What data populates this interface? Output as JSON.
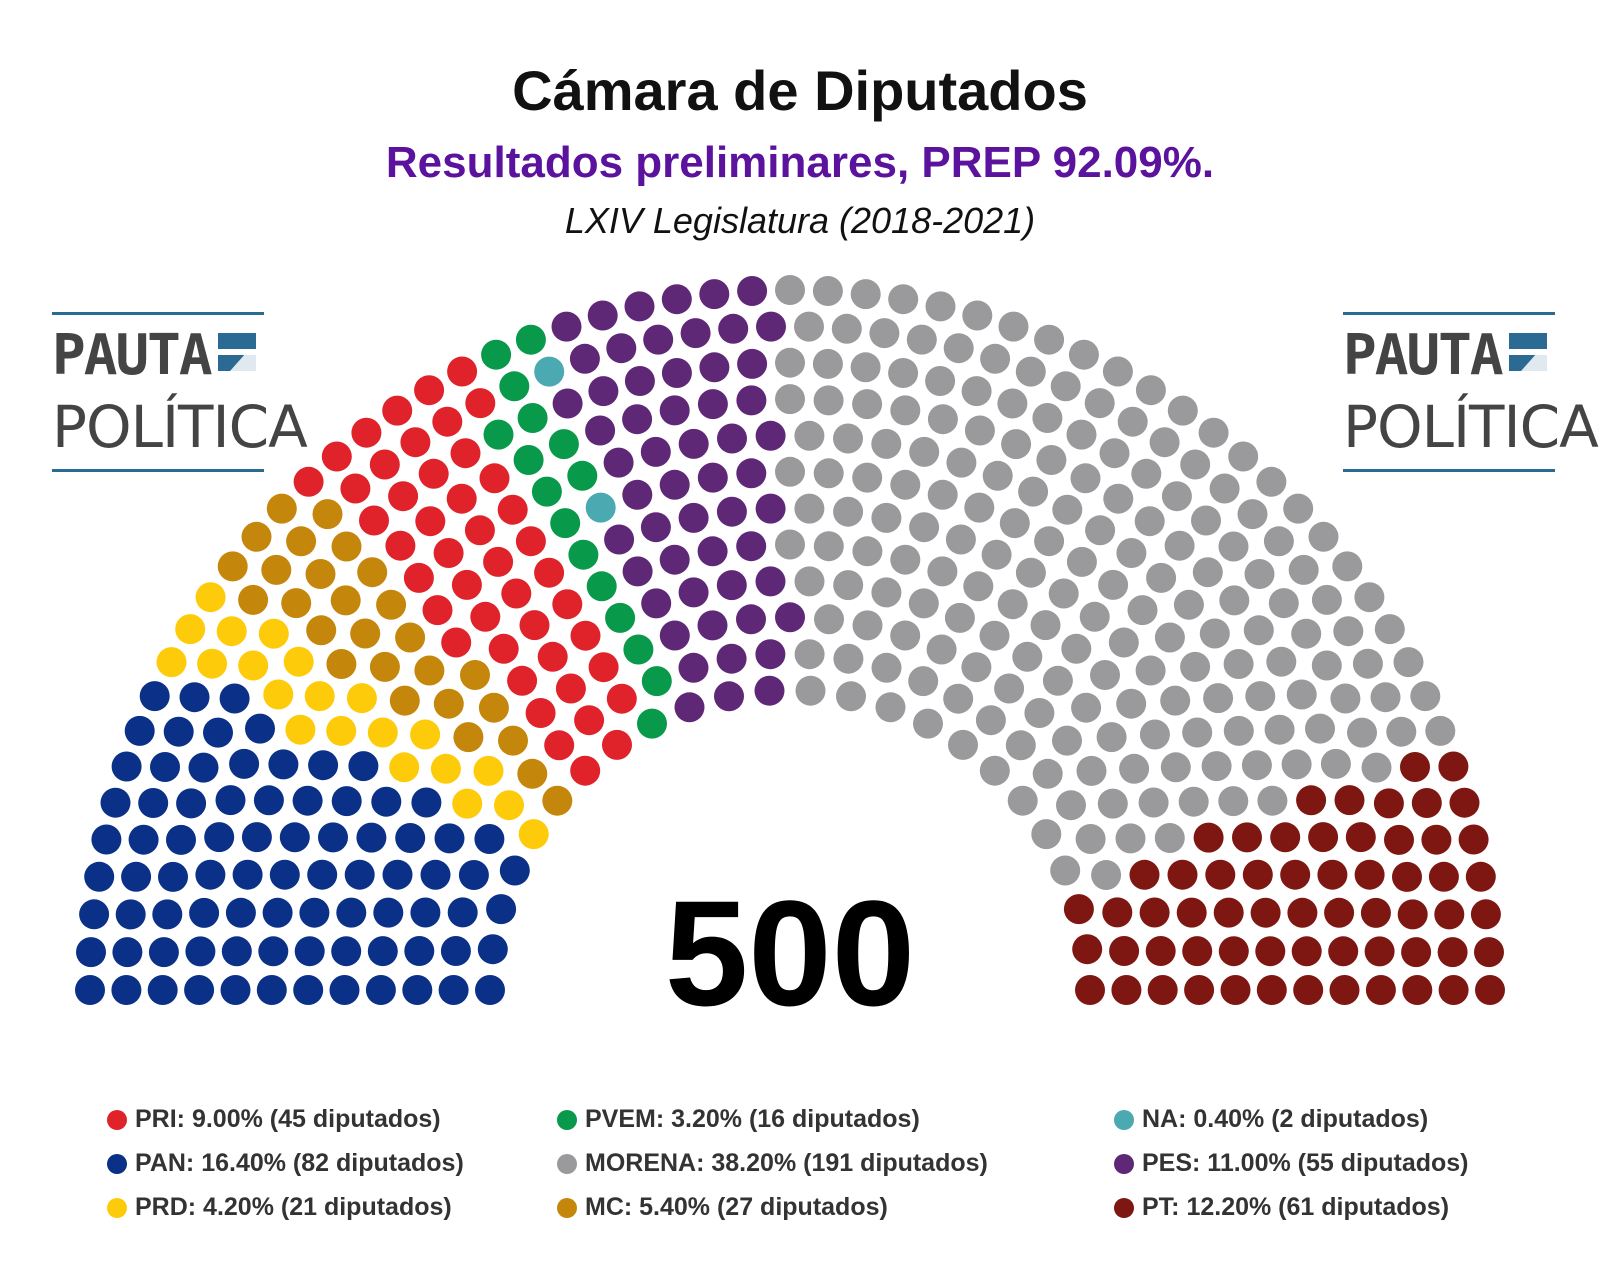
{
  "header": {
    "title": "Cámara de Diputados",
    "subtitle": "Resultados preliminares, PREP 92.09%.",
    "caption": "LXIV Legislatura (2018-2021)"
  },
  "logo": {
    "line1": "PAUTA",
    "line2": "POLÍTICA",
    "color": "#2b6a93"
  },
  "colors": {
    "subtitle": "#5b129d",
    "seat_total": "#000000",
    "logo_text": "#444444"
  },
  "chart_data": {
    "type": "parliament",
    "title": "Cámara de Diputados",
    "total_seats": 500,
    "center_label": "500",
    "order_left_to_right": [
      "PAN",
      "PRD",
      "MC",
      "PRI",
      "PVEM",
      "NA",
      "PES",
      "MORENA",
      "PT"
    ],
    "parties": [
      {
        "name": "PRI",
        "pct": 9.0,
        "seats": 45,
        "color": "#e0232b",
        "label": "PRI: 9.00% (45 diputados)"
      },
      {
        "name": "PAN",
        "pct": 16.4,
        "seats": 82,
        "color": "#0a3187",
        "label": "PAN: 16.40% (82 diputados)"
      },
      {
        "name": "PRD",
        "pct": 4.2,
        "seats": 21,
        "color": "#fecb0b",
        "label": "PRD: 4.20% (21 diputados)"
      },
      {
        "name": "PVEM",
        "pct": 3.2,
        "seats": 16,
        "color": "#08994a",
        "label": "PVEM: 3.20% (16 diputados)"
      },
      {
        "name": "MORENA",
        "pct": 38.2,
        "seats": 191,
        "color": "#9a9a9d",
        "label": "MORENA: 38.20% (191 diputados)"
      },
      {
        "name": "MC",
        "pct": 5.4,
        "seats": 27,
        "color": "#c5860c",
        "label": "MC: 5.40% (27 diputados)"
      },
      {
        "name": "NA",
        "pct": 0.4,
        "seats": 2,
        "color": "#4aa9b1",
        "label": "NA: 0.40% (2 diputados)"
      },
      {
        "name": "PES",
        "pct": 11.0,
        "seats": 55,
        "color": "#5f2877",
        "label": "PES: 11.00% (55 diputados)"
      },
      {
        "name": "PT",
        "pct": 12.2,
        "seats": 61,
        "color": "#7e1711",
        "label": "PT: 12.20% (61 diputados)"
      }
    ]
  }
}
